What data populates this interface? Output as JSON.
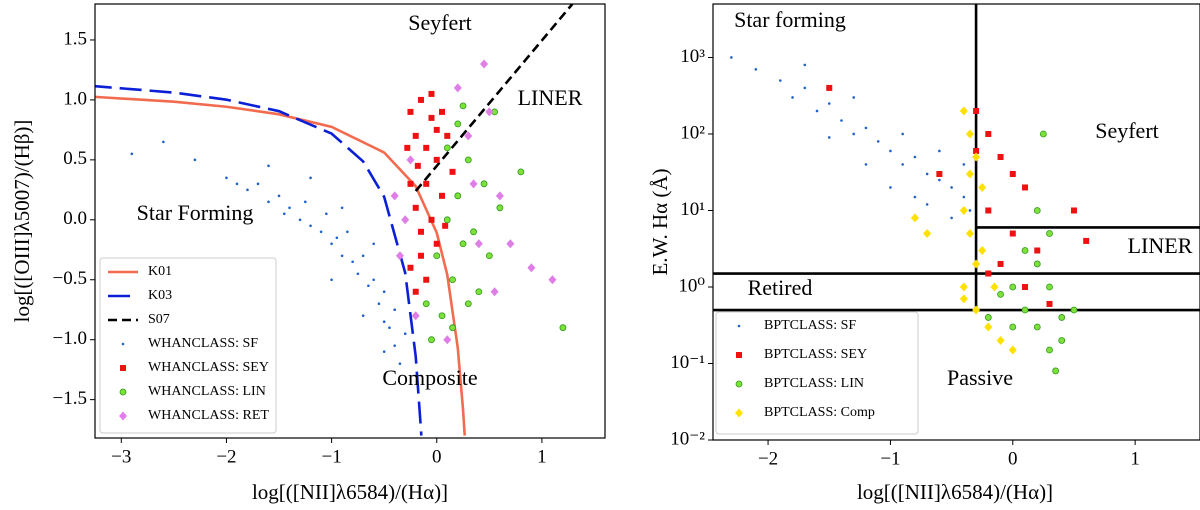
{
  "chart_data": [
    {
      "type": "scatter",
      "xlabel": "log[([NII]λ6584)/(Hα)]",
      "ylabel": "log[([OIII]λ5007)/(Hβ)]",
      "xlim": [
        -3.25,
        1.6
      ],
      "ylim": [
        -1.82,
        1.8
      ],
      "xticks": [
        {
          "value": -3,
          "label": "−3"
        },
        {
          "value": -2,
          "label": "−2"
        },
        {
          "value": -1,
          "label": "−1"
        },
        0,
        1
      ],
      "yticks": [
        {
          "value": -1.5,
          "label": "−1.5"
        },
        {
          "value": -1.0,
          "label": "−1.0"
        },
        {
          "value": -0.5,
          "label": "−0.5"
        },
        {
          "value": 0,
          "label": "0.0"
        },
        0.5,
        {
          "value": 1.0,
          "label": "1.0"
        },
        1.5
      ],
      "legend": "lower left",
      "annotations": [
        "Seyfert",
        "LINER",
        "Star Forming",
        "Composite"
      ],
      "series": [
        {
          "name": "K01",
          "kind": "line",
          "style": "solid",
          "color": "#f26b4f",
          "x": [
            -3.3,
            -2.5,
            -2,
            -1.5,
            -1,
            -0.5,
            -0.2,
            0,
            0.1,
            0.2,
            0.25,
            0.266
          ],
          "y": [
            1.028,
            0.985,
            0.943,
            0.88,
            0.775,
            0.561,
            0.28,
            -0.108,
            -0.459,
            -1.069,
            -1.583,
            -1.8
          ]
        },
        {
          "name": "K03",
          "kind": "line",
          "style": "longdash",
          "color": "#0a1fd6",
          "x": [
            -3.3,
            -2.5,
            -2,
            -1.5,
            -1,
            -0.7,
            -0.5,
            -0.3,
            -0.2,
            -0.15,
            -0.147
          ],
          "y": [
            1.118,
            1.061,
            1.002,
            0.906,
            0.719,
            0.487,
            0.191,
            -0.443,
            -1.14,
            -1.75,
            -1.8
          ]
        },
        {
          "name": "S07",
          "kind": "line",
          "style": "dash",
          "color": "#000000",
          "x": [
            -0.2,
            1.29
          ],
          "y": [
            0.24,
            1.8
          ]
        },
        {
          "name": "WHANCLASS: SF",
          "kind": "points",
          "marker": "dot",
          "color": "#1f62c9",
          "x": [
            -2.0,
            -1.9,
            -1.8,
            -1.7,
            -1.6,
            -1.5,
            -1.45,
            -1.4,
            -1.3,
            -1.25,
            -1.2,
            -1.1,
            -1.05,
            -1.0,
            -0.95,
            -0.9,
            -0.85,
            -0.8,
            -0.75,
            -0.7,
            -0.65,
            -0.6,
            -0.55,
            -0.5,
            -0.5,
            -0.45,
            -0.4,
            -0.4,
            -0.35,
            -0.3,
            -2.3,
            -2.6,
            -1.6,
            -1.2,
            -0.9,
            -0.6,
            -1.0,
            -0.7,
            -0.5,
            -2.9
          ],
          "y": [
            0.35,
            0.3,
            0.25,
            0.3,
            0.15,
            0.2,
            0.05,
            0.1,
            0.0,
            0.15,
            -0.05,
            -0.1,
            0.05,
            -0.2,
            -0.15,
            -0.3,
            -0.1,
            -0.35,
            -0.45,
            -0.3,
            -0.55,
            -0.5,
            -0.7,
            -0.6,
            -0.85,
            -0.9,
            -0.75,
            -1.05,
            -1.2,
            -0.95,
            0.5,
            0.65,
            0.45,
            0.35,
            0.1,
            -0.2,
            -0.5,
            -0.8,
            -1.1,
            0.55
          ]
        },
        {
          "name": "WHANCLASS: SEY",
          "kind": "points",
          "marker": "square",
          "color": "#ee1111",
          "x": [
            -0.25,
            -0.2,
            -0.15,
            -0.1,
            -0.05,
            0.0,
            0.05,
            -0.25,
            -0.2,
            -0.15,
            -0.1,
            -0.05,
            0.0,
            0.05,
            -0.25,
            -0.2,
            -0.15,
            -0.1,
            0.1,
            0.15,
            -0.28,
            -0.05,
            0.0,
            -0.18,
            0.08
          ],
          "y": [
            0.9,
            0.7,
            1.0,
            0.6,
            0.85,
            0.5,
            0.9,
            0.3,
            0.1,
            -0.1,
            0.3,
            0.0,
            -0.2,
            0.2,
            -0.4,
            -0.6,
            -0.3,
            -0.5,
            0.7,
            0.4,
            0.6,
            1.05,
            0.75,
            0.45,
            -0.05
          ]
        },
        {
          "name": "WHANCLASS: LIN",
          "kind": "points",
          "marker": "circle",
          "color": "#7ee03a",
          "x": [
            0.0,
            0.1,
            0.15,
            0.2,
            0.25,
            0.3,
            0.35,
            0.4,
            0.05,
            -0.05,
            0.1,
            0.2,
            0.45,
            0.5,
            0.15,
            0.3,
            -0.1,
            0.25,
            0.6,
            1.2,
            0.8,
            0.55
          ],
          "y": [
            -0.3,
            0.0,
            -0.5,
            0.2,
            -0.2,
            0.5,
            -0.1,
            -0.6,
            -0.8,
            -1.0,
            0.6,
            0.8,
            0.3,
            -0.3,
            -0.9,
            -0.7,
            -0.7,
            0.95,
            0.1,
            -0.9,
            0.4,
            0.9
          ]
        },
        {
          "name": "WHANCLASS: RET",
          "kind": "points",
          "marker": "diamond",
          "color": "#e07ee8",
          "x": [
            -0.3,
            -0.35,
            -0.4,
            -0.2,
            0.1,
            0.3,
            0.45,
            0.5,
            0.6,
            0.7,
            0.9,
            1.1,
            0.4,
            0.2,
            -0.25,
            0.55,
            0.35
          ],
          "y": [
            0.0,
            -0.3,
            0.2,
            -0.8,
            -1.0,
            0.7,
            1.3,
            0.9,
            0.2,
            -0.2,
            -0.4,
            -0.5,
            -0.2,
            1.1,
            0.5,
            -0.6,
            0.3
          ]
        }
      ]
    },
    {
      "type": "scatter",
      "xlabel": "log[([NII]λ6584)/(Hα)]",
      "ylabel": "E.W. Hα (Å)",
      "yscale": "log",
      "xlim": [
        -2.45,
        1.53
      ],
      "ylim": [
        0.01,
        5000
      ],
      "xticks": [
        {
          "value": -2,
          "label": "−2"
        },
        {
          "value": -1,
          "label": "−1"
        },
        0,
        1
      ],
      "yticks": [
        {
          "value": 0.01,
          "label": "10⁻²"
        },
        {
          "value": 0.1,
          "label": "10⁻¹"
        },
        {
          "value": 1,
          "label": "10⁰"
        },
        {
          "value": 10,
          "label": "10¹"
        },
        {
          "value": 100,
          "label": "10²"
        },
        {
          "value": 1000,
          "label": "10³"
        }
      ],
      "legend": "lower left",
      "annotations": [
        "Star forming",
        "Seyfert",
        "LINER",
        "Retired",
        "Passive"
      ],
      "series": [
        {
          "kind": "line",
          "style": "solid",
          "color": "#000000",
          "x": [
            -0.3,
            -0.3
          ],
          "y": [
            0.5,
            5000
          ]
        },
        {
          "kind": "line",
          "style": "solid",
          "color": "#000000",
          "x": [
            -0.3,
            1.53
          ],
          "y": [
            6,
            6
          ]
        },
        {
          "kind": "line",
          "style": "solid",
          "color": "#000000",
          "x": [
            -2.45,
            1.53
          ],
          "y": [
            1.5,
            1.5
          ]
        },
        {
          "kind": "line",
          "style": "solid",
          "color": "#000000",
          "x": [
            -2.45,
            1.53
          ],
          "y": [
            0.5,
            0.5
          ]
        },
        {
          "name": "BPTCLASS: SF",
          "kind": "points",
          "marker": "dot",
          "color": "#1f62c9",
          "x": [
            -2.3,
            -2.1,
            -1.9,
            -1.8,
            -1.7,
            -1.6,
            -1.5,
            -1.4,
            -1.3,
            -1.2,
            -1.1,
            -1.0,
            -0.9,
            -0.8,
            -0.7,
            -0.6,
            -0.5,
            -0.4,
            -0.35,
            -0.5,
            -0.7,
            -1.0,
            -1.2,
            -1.5,
            -0.9,
            -0.6,
            -0.4,
            -0.8,
            -1.3,
            -1.7
          ],
          "y": [
            1000,
            700,
            500,
            300,
            400,
            200,
            250,
            150,
            100,
            120,
            80,
            60,
            40,
            50,
            30,
            25,
            20,
            15,
            10,
            8,
            12,
            20,
            40,
            90,
            100,
            60,
            40,
            15,
            300,
            800
          ]
        },
        {
          "name": "BPTCLASS: SEY",
          "kind": "points",
          "marker": "square",
          "color": "#ee1111",
          "x": [
            -1.5,
            -0.3,
            -0.2,
            -0.1,
            0.0,
            0.1,
            -0.2,
            0.0,
            0.2,
            -0.1,
            0.1,
            0.3,
            0.5,
            0.6,
            -0.3,
            -0.6,
            -0.2
          ],
          "y": [
            400,
            200,
            100,
            50,
            30,
            20,
            10,
            5,
            3,
            2,
            1,
            0.6,
            10,
            4,
            60,
            30,
            1.5
          ]
        },
        {
          "name": "BPTCLASS: LIN",
          "kind": "points",
          "marker": "circle",
          "color": "#7ee03a",
          "x": [
            0.0,
            0.1,
            0.2,
            0.3,
            0.4,
            0.2,
            0.3,
            0.4,
            -0.1,
            0.1,
            0.2,
            0.3,
            0.0,
            0.5,
            0.25,
            -0.2,
            0.35
          ],
          "y": [
            1,
            0.5,
            2,
            1,
            0.4,
            0.3,
            0.15,
            0.2,
            0.8,
            3,
            10,
            5,
            0.3,
            0.5,
            100,
            0.4,
            0.08
          ]
        },
        {
          "name": "BPTCLASS: Comp",
          "kind": "points",
          "marker": "diamond",
          "color": "#ffe100",
          "x": [
            -0.4,
            -0.35,
            -0.3,
            -0.25,
            -0.4,
            -0.35,
            -0.3,
            -0.4,
            -0.3,
            -0.2,
            -0.1,
            -0.4,
            -0.8,
            -0.7,
            -0.25,
            -0.15,
            0.0,
            -0.35
          ],
          "y": [
            200,
            100,
            50,
            20,
            10,
            5,
            2,
            1,
            0.5,
            0.3,
            0.2,
            0.7,
            8,
            5,
            3,
            1,
            0.15,
            30
          ]
        }
      ]
    }
  ]
}
